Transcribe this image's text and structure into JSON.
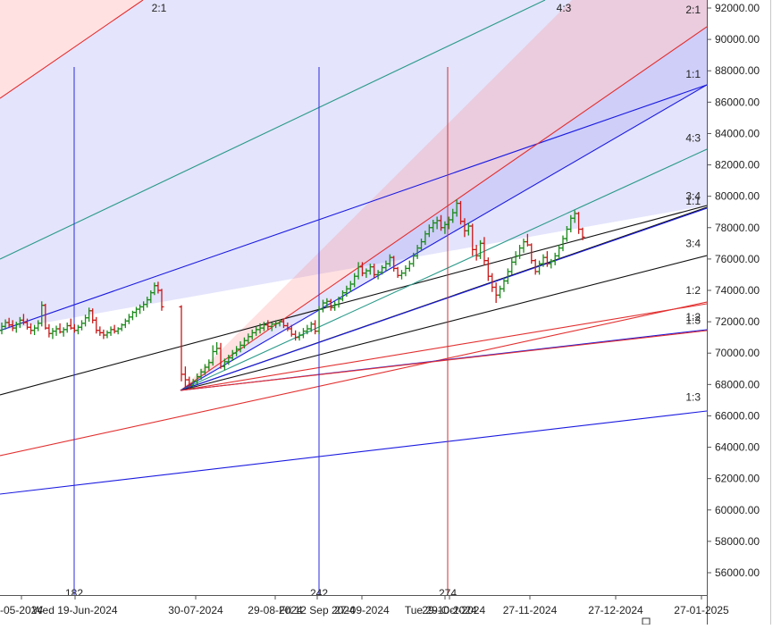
{
  "chart_data": {
    "type": "bar",
    "title": "",
    "ylim": [
      55000,
      92500
    ],
    "yticks": [
      "92000.00",
      "90000.00",
      "88000.00",
      "86000.00",
      "84000.00",
      "82000.00",
      "80000.00",
      "78000.00",
      "76000.00",
      "74000.00",
      "72000.00",
      "70000.00",
      "68000.00",
      "66000.00",
      "64000.00",
      "62000.00",
      "60000.00",
      "58000.00",
      "56000.00"
    ],
    "xticks": [
      {
        "label": "-05-2024",
        "pos": 24
      },
      {
        "label": "Wed 19-Jun-2024",
        "pos": 84
      },
      {
        "label": "30-07-2024",
        "pos": 219
      },
      {
        "label": "29-08-2024",
        "pos": 308
      },
      {
        "label": "Fri 12 Sep 2024",
        "pos": 355
      },
      {
        "label": "27-09-2024",
        "pos": 405
      },
      {
        "label": "Tue 29-Oct-2024",
        "pos": 498
      },
      {
        "label": "29-10-2024",
        "pos": 503
      },
      {
        "label": "27-11-2024",
        "pos": 593
      },
      {
        "label": "27-12-2024",
        "pos": 689
      },
      {
        "label": "27-01-2025",
        "pos": 785
      }
    ],
    "time_cycles": [
      {
        "label": "182",
        "pos": 83,
        "color": "#2a2ae0"
      },
      {
        "label": "242",
        "pos": 357,
        "color": "#2a2ae0"
      },
      {
        "label": "274",
        "pos": 501,
        "color": "#d03030"
      }
    ],
    "fan_right_labels": [
      {
        "label": "2:1",
        "price": 91500
      },
      {
        "label": "1:1",
        "price": 87400
      },
      {
        "label": "4:3",
        "price": 83300
      },
      {
        "label": "3:4",
        "price": 79600
      },
      {
        "label": "1:1",
        "price": 79300
      },
      {
        "label": "3:4",
        "price": 76600
      },
      {
        "label": "1:2",
        "price": 73600
      },
      {
        "label": "1:2",
        "price": 71900
      },
      {
        "label": "1:3",
        "price": 71700
      },
      {
        "label": "1:3",
        "price": 66800
      }
    ],
    "fan_top_labels": [
      {
        "label": "2:1",
        "pos": 178
      },
      {
        "label": "4:3",
        "pos": 631
      }
    ],
    "ohlc": [
      [
        71450,
        71950,
        71200,
        71700
      ],
      [
        71700,
        72150,
        71500,
        71950
      ],
      [
        71950,
        72250,
        71650,
        71800
      ],
      [
        71800,
        72100,
        71400,
        71600
      ],
      [
        71600,
        72000,
        71300,
        71850
      ],
      [
        71850,
        72300,
        71600,
        72100
      ],
      [
        72100,
        72500,
        71800,
        71950
      ],
      [
        71950,
        72200,
        71500,
        71650
      ],
      [
        71650,
        71900,
        71200,
        71450
      ],
      [
        71450,
        71800,
        71150,
        71600
      ],
      [
        71600,
        72100,
        71400,
        71900
      ],
      [
        71900,
        73300,
        71700,
        73050
      ],
      [
        73050,
        73150,
        71500,
        71600
      ],
      [
        71600,
        71850,
        71000,
        71250
      ],
      [
        71250,
        71600,
        70900,
        71400
      ],
      [
        71400,
        71750,
        71100,
        71550
      ],
      [
        71550,
        71900,
        71250,
        71350
      ],
      [
        71350,
        71650,
        71050,
        71500
      ],
      [
        71500,
        71950,
        71300,
        71750
      ],
      [
        71750,
        72200,
        71500,
        71600
      ],
      [
        71600,
        71850,
        71300,
        71450
      ],
      [
        71450,
        71800,
        71200,
        71650
      ],
      [
        71650,
        72100,
        71450,
        71900
      ],
      [
        71900,
        72450,
        71700,
        72250
      ],
      [
        72250,
        72900,
        72000,
        72700
      ],
      [
        72700,
        72850,
        71900,
        72100
      ],
      [
        72100,
        72300,
        71250,
        71450
      ],
      [
        71450,
        71700,
        71100,
        71300
      ],
      [
        71300,
        71500,
        70900,
        71150
      ],
      [
        71150,
        71450,
        70950,
        71300
      ],
      [
        71300,
        71700,
        71100,
        71500
      ],
      [
        71500,
        71800,
        71250,
        71400
      ],
      [
        71400,
        71650,
        71200,
        71550
      ],
      [
        71550,
        71900,
        71400,
        71800
      ],
      [
        71800,
        72200,
        71600,
        72050
      ],
      [
        72050,
        72500,
        71850,
        72300
      ],
      [
        72300,
        72700,
        72100,
        72600
      ],
      [
        72600,
        72950,
        72300,
        72800
      ],
      [
        72800,
        73100,
        72500,
        72950
      ],
      [
        72950,
        73300,
        72700,
        73100
      ],
      [
        73100,
        73600,
        72900,
        73400
      ],
      [
        73400,
        74000,
        73200,
        73850
      ],
      [
        73850,
        74500,
        73700,
        74300
      ],
      [
        74300,
        74550,
        73800,
        74000
      ],
      [
        74000,
        74100,
        72700,
        72950
      ],
      [
        72950,
        73050,
        68200,
        68650
      ],
      [
        68650,
        69150,
        67800,
        68300
      ],
      [
        68300,
        68500,
        67750,
        67950
      ],
      [
        67950,
        68350,
        67700,
        68200
      ],
      [
        68200,
        68700,
        68000,
        68500
      ],
      [
        68500,
        69000,
        68300,
        68800
      ],
      [
        68800,
        69300,
        68600,
        69100
      ],
      [
        69100,
        69600,
        68900,
        69400
      ],
      [
        69400,
        70500,
        69200,
        70100
      ],
      [
        70100,
        70700,
        69900,
        70300
      ],
      [
        70300,
        70650,
        69000,
        69150
      ],
      [
        69150,
        69650,
        68900,
        69450
      ],
      [
        69450,
        69900,
        69250,
        69700
      ],
      [
        69700,
        70200,
        69500,
        70000
      ],
      [
        70000,
        70450,
        69800,
        70250
      ],
      [
        70250,
        70750,
        70050,
        70500
      ],
      [
        70500,
        71000,
        70300,
        70800
      ],
      [
        70800,
        71250,
        70600,
        71050
      ],
      [
        71050,
        71500,
        70850,
        71300
      ],
      [
        71300,
        71700,
        71100,
        71500
      ],
      [
        71500,
        71900,
        71250,
        71600
      ],
      [
        71600,
        72000,
        71400,
        71800
      ],
      [
        71800,
        72100,
        71500,
        71700
      ],
      [
        71700,
        71950,
        71400,
        71850
      ],
      [
        71850,
        72100,
        71600,
        71900
      ],
      [
        71900,
        72150,
        71700,
        72000
      ],
      [
        72000,
        72150,
        71600,
        71750
      ],
      [
        71750,
        71950,
        71400,
        71550
      ],
      [
        71550,
        71800,
        71050,
        71200
      ],
      [
        71200,
        71450,
        70800,
        71000
      ],
      [
        71000,
        71350,
        70800,
        71150
      ],
      [
        71150,
        71600,
        70950,
        71400
      ],
      [
        71400,
        71800,
        71200,
        71550
      ],
      [
        71550,
        72000,
        71350,
        71850
      ],
      [
        71850,
        72100,
        71200,
        71400
      ],
      [
        71400,
        73000,
        71200,
        72800
      ],
      [
        72800,
        73400,
        72600,
        73200
      ],
      [
        73200,
        73500,
        72900,
        73300
      ],
      [
        73300,
        73450,
        72700,
        72900
      ],
      [
        72900,
        73300,
        72700,
        73100
      ],
      [
        73100,
        73600,
        72900,
        73450
      ],
      [
        73450,
        74000,
        73300,
        73850
      ],
      [
        73850,
        74300,
        73600,
        74100
      ],
      [
        74100,
        74600,
        73900,
        74400
      ],
      [
        74400,
        75100,
        74200,
        74900
      ],
      [
        74900,
        75800,
        74700,
        75500
      ],
      [
        75500,
        75800,
        74900,
        75100
      ],
      [
        75100,
        75400,
        74800,
        75250
      ],
      [
        75250,
        75700,
        75000,
        75500
      ],
      [
        75500,
        75700,
        74800,
        75000
      ],
      [
        75000,
        75300,
        74700,
        75150
      ],
      [
        75150,
        75600,
        75000,
        75450
      ],
      [
        75450,
        75900,
        75250,
        75700
      ],
      [
        75700,
        76300,
        75500,
        76100
      ],
      [
        76100,
        76200,
        75200,
        75400
      ],
      [
        75400,
        75500,
        74800,
        74950
      ],
      [
        74950,
        75300,
        74700,
        75100
      ],
      [
        75100,
        75600,
        74900,
        75400
      ],
      [
        75400,
        75900,
        75200,
        75700
      ],
      [
        75700,
        76400,
        75500,
        76200
      ],
      [
        76200,
        76900,
        76000,
        76700
      ],
      [
        76700,
        77300,
        76500,
        77100
      ],
      [
        77100,
        77800,
        76900,
        77600
      ],
      [
        77600,
        78200,
        77400,
        78000
      ],
      [
        78000,
        78500,
        77700,
        78300
      ],
      [
        78300,
        78700,
        77900,
        78450
      ],
      [
        78450,
        78800,
        77800,
        78000
      ],
      [
        78000,
        78400,
        77600,
        78200
      ],
      [
        78200,
        78700,
        77900,
        78500
      ],
      [
        78500,
        79200,
        78300,
        78950
      ],
      [
        78950,
        79800,
        78700,
        79550
      ],
      [
        79550,
        79700,
        78200,
        78400
      ],
      [
        78400,
        78600,
        77400,
        77800
      ],
      [
        77800,
        78300,
        77500,
        78100
      ],
      [
        78100,
        78250,
        76200,
        76600
      ],
      [
        76600,
        76900,
        75900,
        76200
      ],
      [
        76200,
        77200,
        76000,
        77000
      ],
      [
        77000,
        77400,
        75600,
        75900
      ],
      [
        75900,
        76100,
        74600,
        74900
      ],
      [
        74900,
        75100,
        73900,
        74200
      ],
      [
        74200,
        74500,
        73200,
        73700
      ],
      [
        73700,
        74300,
        73500,
        74100
      ],
      [
        74100,
        74800,
        73900,
        74600
      ],
      [
        74600,
        75400,
        74400,
        75200
      ],
      [
        75200,
        76100,
        75000,
        75800
      ],
      [
        75800,
        76500,
        75600,
        76200
      ],
      [
        76200,
        76900,
        76000,
        76700
      ],
      [
        76700,
        77300,
        76400,
        77100
      ],
      [
        77100,
        77600,
        76800,
        76900
      ],
      [
        76900,
        77000,
        75700,
        75900
      ],
      [
        75900,
        76000,
        75000,
        75200
      ],
      [
        75200,
        75900,
        75000,
        75700
      ],
      [
        75700,
        76300,
        75500,
        76100
      ],
      [
        76100,
        76500,
        75500,
        75700
      ],
      [
        75700,
        76000,
        75400,
        75850
      ],
      [
        75850,
        76400,
        75600,
        76200
      ],
      [
        76200,
        76900,
        76000,
        76700
      ],
      [
        76700,
        77500,
        76500,
        77300
      ],
      [
        77300,
        78100,
        77100,
        77900
      ],
      [
        77900,
        78800,
        77700,
        78600
      ],
      [
        78600,
        79100,
        78300,
        78900
      ],
      [
        78900,
        79000,
        77600,
        77900
      ],
      [
        77900,
        78000,
        77200,
        77400
      ]
    ]
  },
  "colors": {
    "red_band": "rgba(255,120,120,0.22)",
    "blue_band": "rgba(120,120,240,0.20)",
    "red_line": "#e23030",
    "blue_line": "#1b1be0",
    "teal_line": "#2a9a8a",
    "black_line": "#111111",
    "up_bar": "#1a8a1a",
    "down_bar": "#c81818",
    "cycle_label_color": "#222222"
  }
}
